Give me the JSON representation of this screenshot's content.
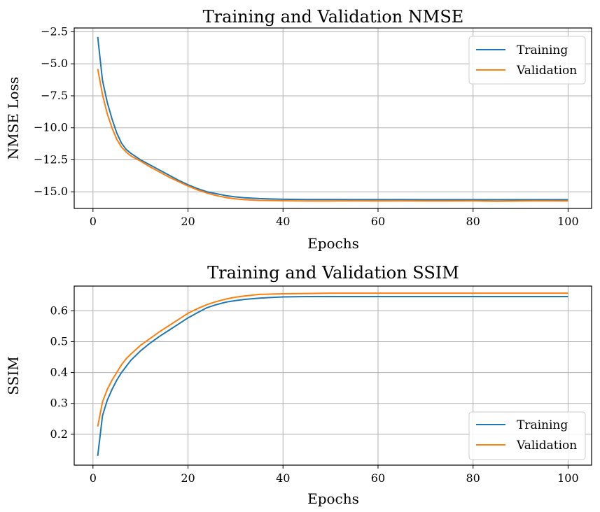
{
  "colors": {
    "training": "#1f77b4",
    "validation": "#ff7f0e",
    "grid": "#b0b0b0",
    "axes": "#000000"
  },
  "chart_data": [
    {
      "type": "line",
      "title": "Training and Validation NMSE",
      "xlabel": "Epochs",
      "ylabel": "NMSE Loss",
      "xlim": [
        -3.95,
        104.95
      ],
      "ylim": [
        -16.3,
        -2.2
      ],
      "xticks": [
        0,
        20,
        40,
        60,
        80,
        100
      ],
      "xtick_labels": [
        "0",
        "20",
        "40",
        "60",
        "80",
        "100"
      ],
      "yticks": [
        -15.0,
        -12.5,
        -10.0,
        -7.5,
        -5.0,
        -2.5
      ],
      "ytick_labels": [
        "−15.0",
        "−12.5",
        "−10.0",
        "−7.5",
        "−5.0",
        "−2.5"
      ],
      "grid": true,
      "legend_position": "top-right",
      "series": [
        {
          "name": "Training",
          "color": "#1f77b4",
          "x": [
            1,
            2,
            3,
            4,
            5,
            6,
            7,
            8,
            10,
            12,
            14,
            16,
            18,
            20,
            22,
            24,
            26,
            28,
            30,
            32,
            35,
            40,
            45,
            50,
            55,
            60,
            65,
            70,
            75,
            80,
            85,
            90,
            95,
            100
          ],
          "y": [
            -2.9,
            -6.3,
            -8.0,
            -9.3,
            -10.4,
            -11.2,
            -11.7,
            -12.0,
            -12.5,
            -12.9,
            -13.3,
            -13.7,
            -14.1,
            -14.45,
            -14.75,
            -15.0,
            -15.15,
            -15.3,
            -15.4,
            -15.47,
            -15.53,
            -15.58,
            -15.6,
            -15.6,
            -15.61,
            -15.61,
            -15.61,
            -15.62,
            -15.62,
            -15.62,
            -15.62,
            -15.62,
            -15.62,
            -15.62
          ]
        },
        {
          "name": "Validation",
          "color": "#ff7f0e",
          "x": [
            1,
            2,
            3,
            4,
            5,
            6,
            7,
            8,
            10,
            12,
            14,
            16,
            18,
            20,
            22,
            24,
            26,
            28,
            30,
            32,
            35,
            40,
            45,
            50,
            55,
            60,
            65,
            70,
            75,
            80,
            85,
            90,
            95,
            100
          ],
          "y": [
            -5.4,
            -7.4,
            -8.9,
            -10.0,
            -10.9,
            -11.5,
            -11.9,
            -12.2,
            -12.6,
            -13.05,
            -13.45,
            -13.85,
            -14.2,
            -14.55,
            -14.85,
            -15.1,
            -15.3,
            -15.45,
            -15.55,
            -15.62,
            -15.67,
            -15.7,
            -15.72,
            -15.72,
            -15.71,
            -15.72,
            -15.71,
            -15.72,
            -15.72,
            -15.71,
            -15.74,
            -15.72,
            -15.71,
            -15.72
          ]
        }
      ]
    },
    {
      "type": "line",
      "title": "Training and Validation SSIM",
      "xlabel": "Epochs",
      "ylabel": "SSIM",
      "xlim": [
        -3.95,
        104.95
      ],
      "ylim": [
        0.1,
        0.68
      ],
      "xticks": [
        0,
        20,
        40,
        60,
        80,
        100
      ],
      "xtick_labels": [
        "0",
        "20",
        "40",
        "60",
        "80",
        "100"
      ],
      "yticks": [
        0.2,
        0.3,
        0.4,
        0.5,
        0.6
      ],
      "ytick_labels": [
        "0.2",
        "0.3",
        "0.4",
        "0.5",
        "0.6"
      ],
      "grid": true,
      "legend_position": "bottom-right",
      "series": [
        {
          "name": "Training",
          "color": "#1f77b4",
          "x": [
            1,
            2,
            3,
            4,
            5,
            6,
            7,
            8,
            10,
            12,
            14,
            16,
            18,
            20,
            22,
            24,
            26,
            28,
            30,
            32,
            35,
            40,
            45,
            50,
            55,
            60,
            65,
            70,
            75,
            80,
            85,
            90,
            95,
            100
          ],
          "y": [
            0.13,
            0.26,
            0.31,
            0.345,
            0.375,
            0.4,
            0.42,
            0.44,
            0.47,
            0.495,
            0.517,
            0.537,
            0.557,
            0.577,
            0.594,
            0.61,
            0.62,
            0.628,
            0.633,
            0.637,
            0.641,
            0.645,
            0.646,
            0.646,
            0.646,
            0.646,
            0.646,
            0.646,
            0.646,
            0.646,
            0.646,
            0.646,
            0.646,
            0.646
          ]
        },
        {
          "name": "Validation",
          "color": "#ff7f0e",
          "x": [
            1,
            2,
            3,
            4,
            5,
            6,
            7,
            8,
            10,
            12,
            14,
            16,
            18,
            20,
            22,
            24,
            26,
            28,
            30,
            32,
            35,
            40,
            45,
            50,
            55,
            60,
            65,
            70,
            75,
            80,
            85,
            90,
            95,
            100
          ],
          "y": [
            0.225,
            0.305,
            0.345,
            0.375,
            0.4,
            0.425,
            0.445,
            0.46,
            0.488,
            0.51,
            0.532,
            0.552,
            0.572,
            0.592,
            0.607,
            0.62,
            0.63,
            0.638,
            0.644,
            0.648,
            0.653,
            0.655,
            0.656,
            0.657,
            0.657,
            0.657,
            0.657,
            0.657,
            0.657,
            0.657,
            0.657,
            0.657,
            0.657,
            0.657
          ]
        }
      ]
    }
  ]
}
